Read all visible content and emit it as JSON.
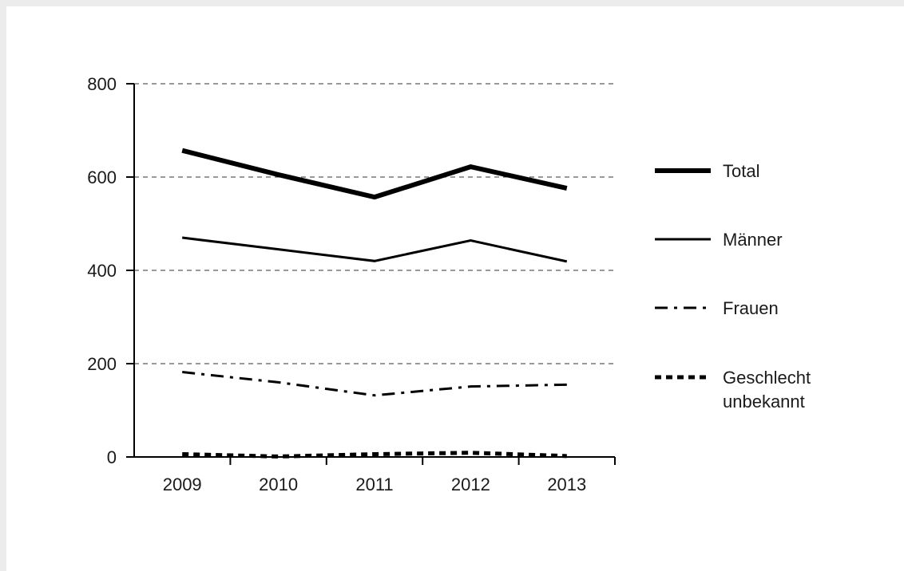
{
  "chart_data": {
    "type": "line",
    "title": "",
    "xlabel": "",
    "ylabel": "",
    "categories": [
      "2009",
      "2010",
      "2011",
      "2012",
      "2013"
    ],
    "ylim": [
      0,
      800
    ],
    "yticks": [
      0,
      200,
      400,
      600,
      800
    ],
    "grid": "horizontal dashed",
    "legend_position": "right",
    "series": [
      {
        "name": "Total",
        "style": "thick-solid",
        "values": [
          657,
          605,
          557,
          622,
          576
        ]
      },
      {
        "name": "Männer",
        "style": "solid",
        "values": [
          470,
          445,
          420,
          464,
          419
        ]
      },
      {
        "name": "Frauen",
        "style": "dash-dot",
        "values": [
          182,
          160,
          132,
          151,
          155
        ]
      },
      {
        "name": "Geschlecht unbekannt",
        "style": "dotted-thick",
        "values": [
          6,
          1,
          6,
          9,
          2
        ]
      }
    ],
    "colors": {
      "line": "#000000",
      "grid": "#333333",
      "background": "#ffffff",
      "frame": "#ececec"
    }
  }
}
